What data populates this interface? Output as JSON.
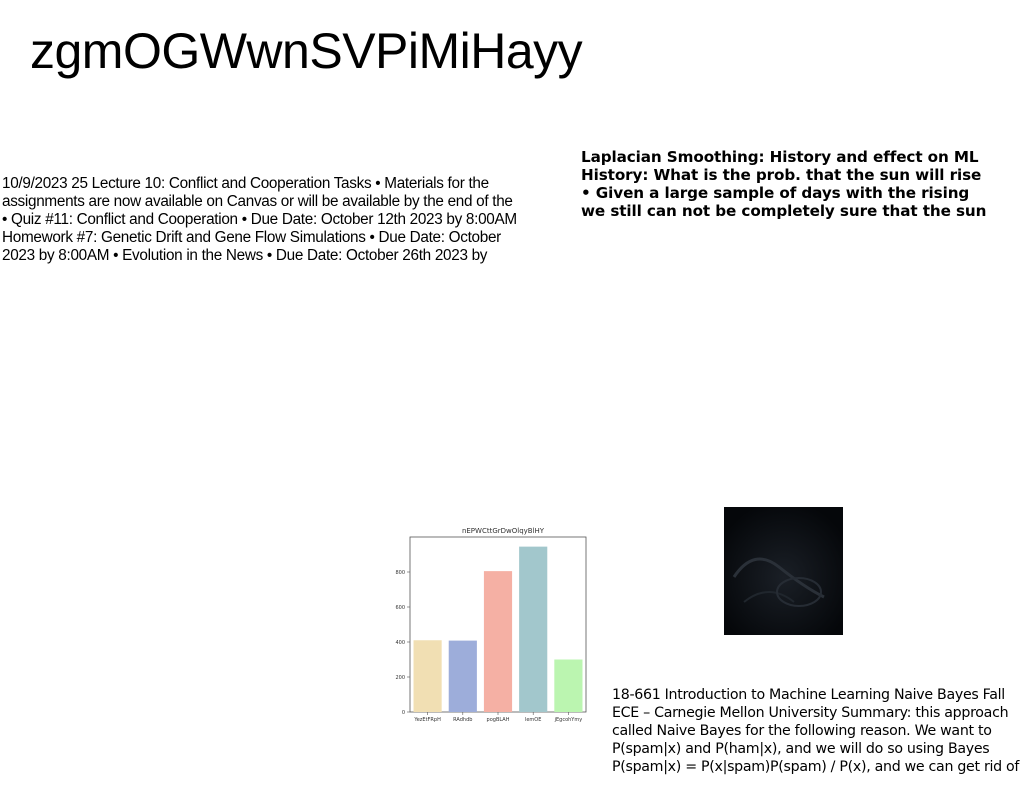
{
  "title": "zgmOGWwnSVPiMiHayy",
  "left_block": {
    "lines": [
      "10/9/2023 25 Lecture 10: Conflict and Cooperation Tasks • Materials for the",
      "assignments are now available on Canvas or will be available by the end of the",
      "• Quiz #11: Conflict and Cooperation • Due Date: October 12th 2023 by 8:00AM",
      "Homework #7: Genetic Drift and Gene Flow Simulations • Due Date: October",
      "2023 by 8:00AM • Evolution in the News • Due Date: October 26th 2023 by"
    ]
  },
  "right_block": {
    "lines": [
      "Laplacian Smoothing: History and effect on ML",
      "History: What is the prob. that the sun will rise",
      "• Given a large sample of days with the rising",
      "we still can not be completely sure that the sun"
    ]
  },
  "bottom_block": {
    "lines": [
      "18-661 Introduction to Machine Learning Naive Bayes Fall",
      "ECE – Carnegie Mellon University Summary: this approach",
      "called Naive Bayes for the following reason. We want to",
      "P(spam|x) and P(ham|x), and we will do so using Bayes",
      "P(spam|x) = P(x|spam)P(spam) / P(x), and we can get rid of"
    ]
  },
  "chart_data": {
    "type": "bar",
    "title": "nEPWCttGrDwOlqyBlHY",
    "categories": [
      "YezEtFRpH",
      "RAdhdb",
      "pogBLAH",
      "lemOE",
      "jEgcohYmy"
    ],
    "values": [
      410,
      408,
      805,
      945,
      300
    ],
    "colors": [
      "#f1dfb3",
      "#9dadda",
      "#f5b0a4",
      "#a2c7cc",
      "#bbf5b0"
    ],
    "yticks": [
      0,
      200,
      400,
      600,
      800
    ],
    "ylim": [
      0,
      1000
    ],
    "grid": false
  }
}
